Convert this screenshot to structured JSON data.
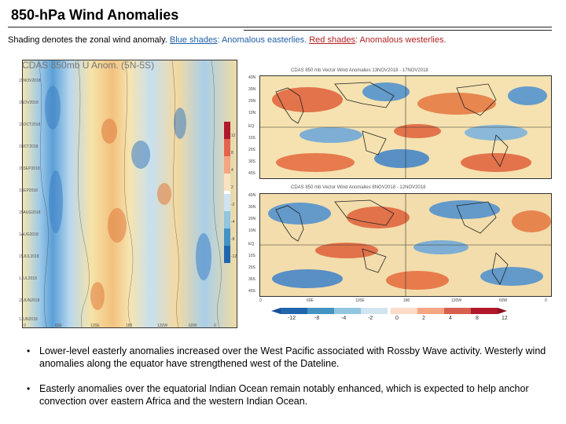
{
  "title": "850-hPa Wind Anomalies",
  "subtitle": {
    "prefix": "Shading denotes the zonal wind anomaly. ",
    "blue_label": "Blue shades",
    "blue_desc": ": Anomalous easterlies. ",
    "red_label": "Red shades",
    "red_desc": ": Anomalous westerlies."
  },
  "hovmoller": {
    "title": "CDAS 850mb U Anom. (5N-5S)",
    "y_ticks": [
      "15NOV2018",
      "1NOV2018",
      "15OCT2018",
      "1OCT2018",
      "15SEP2018",
      "1SEP2018",
      "15AUG2018",
      "1AUG2018",
      "15JUL2018",
      "1JUL2018",
      "15JUN2018",
      "1JUN2018"
    ],
    "x_ticks": [
      "0",
      "60E",
      "120E",
      "180",
      "120W",
      "60W",
      "0"
    ],
    "colorbar": [
      "12",
      "8",
      "4",
      "2",
      "-2",
      "-4",
      "-8",
      "-12"
    ]
  },
  "maps": [
    {
      "title": "CDAS 850 mb Vector Wind Anomalies   13NOV2018 - 17NOV2018",
      "lat_ticks": [
        "40N",
        "30N",
        "20N",
        "10N",
        "EQ",
        "10S",
        "20S",
        "30S",
        "40S"
      ]
    },
    {
      "title": "CDAS 850 mb Vector Wind Anomalies   8NOV2018 - 12NOV2018",
      "lat_ticks": [
        "40N",
        "30N",
        "20N",
        "10N",
        "EQ",
        "10S",
        "20S",
        "30S",
        "40S"
      ]
    }
  ],
  "map_lon_ticks": [
    "0",
    "60E",
    "120E",
    "180",
    "120W",
    "60W",
    "0"
  ],
  "colorbar_h": [
    "-12",
    "-8",
    "-4",
    "-2",
    "0",
    "2",
    "4",
    "8",
    "12"
  ],
  "bullets": [
    "Lower-level easterly anomalies increased over the West Pacific associated with Rossby Wave activity. Westerly wind anomalies along the equator have strengthened west of the Dateline.",
    "Easterly anomalies over the equatorial Indian Ocean remain notably enhanced, which is expected to help anchor convection over eastern Africa and the western Indian Ocean."
  ],
  "colors": {
    "blue_label": "#1f5fa8",
    "red_label": "#b21f1f"
  }
}
